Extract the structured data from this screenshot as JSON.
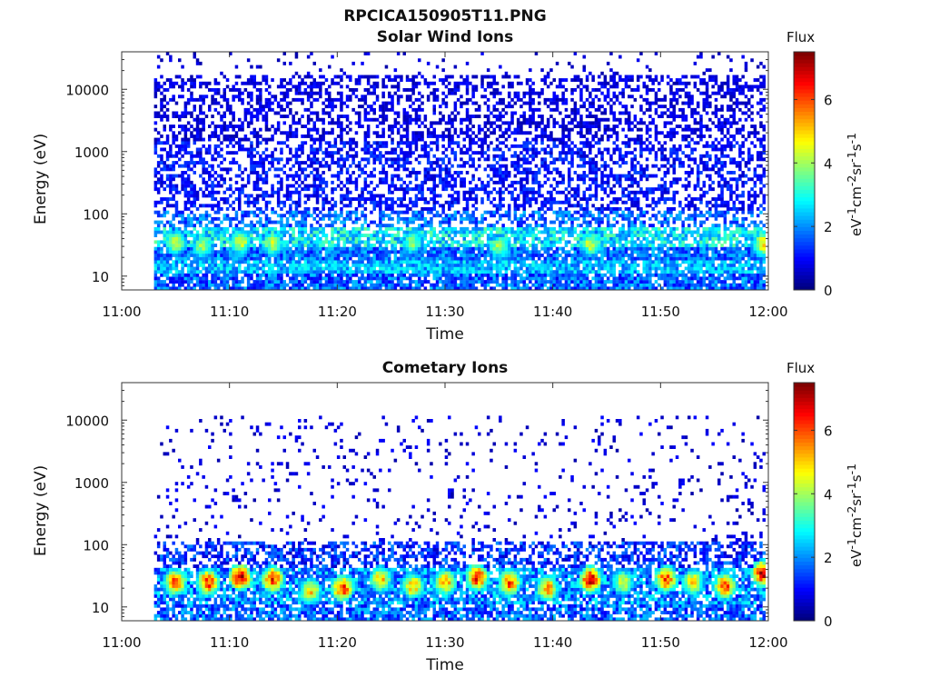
{
  "title": "RPCICA150905T11.PNG",
  "chart_data": [
    {
      "type": "heatmap",
      "title": "Solar Wind Ions",
      "xlabel": "Time",
      "ylabel": "Energy (eV)",
      "x_ticks": [
        "11:00",
        "11:10",
        "11:20",
        "11:30",
        "11:40",
        "11:50",
        "12:00"
      ],
      "xlim_minutes": [
        0,
        60
      ],
      "y_scale": "log",
      "y_ticks": [
        "10",
        "100",
        "1000",
        "10000"
      ],
      "ylim": [
        6,
        40000
      ],
      "data_start_minute": 3,
      "colorbar": {
        "label": "Flux",
        "unit": "eV-1cm-2sr-1s-1",
        "ticks": [
          "0",
          "2",
          "4",
          "6"
        ],
        "range": [
          0,
          7.5
        ],
        "colormap": "jet"
      },
      "bands": [
        {
          "emin": 6,
          "emax": 11,
          "density": 0.85,
          "flux": [
            0.8,
            2.5
          ]
        },
        {
          "emin": 11,
          "emax": 18,
          "density": 0.9,
          "flux": [
            1.5,
            3.0
          ]
        },
        {
          "emin": 18,
          "emax": 28,
          "density": 0.9,
          "flux": [
            1.0,
            2.5
          ]
        },
        {
          "emin": 28,
          "emax": 60,
          "density": 0.75,
          "flux": [
            1.8,
            3.6
          ]
        },
        {
          "emin": 60,
          "emax": 120,
          "density": 0.55,
          "flux": [
            1.0,
            2.4
          ]
        },
        {
          "emin": 120,
          "emax": 1500,
          "density": 0.5,
          "flux": [
            0.5,
            1.5
          ]
        },
        {
          "emin": 1500,
          "emax": 16000,
          "density": 0.45,
          "flux": [
            0.3,
            1.1
          ]
        },
        {
          "emin": 16000,
          "emax": 40000,
          "density": 0.06,
          "flux": [
            0.3,
            0.9
          ]
        }
      ],
      "hotspots": [
        {
          "minute": 5,
          "energy": 35,
          "flux": 4.3
        },
        {
          "minute": 7.5,
          "energy": 30,
          "flux": 4.0
        },
        {
          "minute": 11,
          "energy": 35,
          "flux": 4.5
        },
        {
          "minute": 14,
          "energy": 33,
          "flux": 4.2
        },
        {
          "minute": 27,
          "energy": 35,
          "flux": 3.8
        },
        {
          "minute": 35,
          "energy": 30,
          "flux": 4.0
        },
        {
          "minute": 43.5,
          "energy": 33,
          "flux": 4.3
        },
        {
          "minute": 59.5,
          "energy": 33,
          "flux": 4.8
        }
      ]
    },
    {
      "type": "heatmap",
      "title": "Cometary Ions",
      "xlabel": "Time",
      "ylabel": "Energy (eV)",
      "x_ticks": [
        "11:00",
        "11:10",
        "11:20",
        "11:30",
        "11:40",
        "11:50",
        "12:00"
      ],
      "xlim_minutes": [
        0,
        60
      ],
      "y_scale": "log",
      "y_ticks": [
        "10",
        "100",
        "1000",
        "10000"
      ],
      "ylim": [
        6,
        40000
      ],
      "data_start_minute": 3,
      "colorbar": {
        "label": "Flux",
        "unit": "eV-1cm-2sr-1s-1",
        "ticks": [
          "0",
          "2",
          "4",
          "6"
        ],
        "range": [
          0,
          7.5
        ],
        "colormap": "jet"
      },
      "bands": [
        {
          "emin": 6,
          "emax": 11,
          "density": 0.75,
          "flux": [
            0.8,
            2.5
          ]
        },
        {
          "emin": 11,
          "emax": 45,
          "density": 0.8,
          "flux": [
            1.0,
            3.0
          ]
        },
        {
          "emin": 45,
          "emax": 120,
          "density": 0.55,
          "flux": [
            0.5,
            2.0
          ]
        },
        {
          "emin": 120,
          "emax": 12000,
          "density": 0.07,
          "flux": [
            0.3,
            1.0
          ]
        }
      ],
      "hotspots": [
        {
          "minute": 5,
          "energy": 25,
          "flux": 6.0
        },
        {
          "minute": 8,
          "energy": 25,
          "flux": 6.3
        },
        {
          "minute": 11,
          "energy": 30,
          "flux": 7.0
        },
        {
          "minute": 14,
          "energy": 28,
          "flux": 6.3
        },
        {
          "minute": 17.5,
          "energy": 18,
          "flux": 5.0
        },
        {
          "minute": 20.5,
          "energy": 20,
          "flux": 6.2
        },
        {
          "minute": 24,
          "energy": 28,
          "flux": 5.2
        },
        {
          "minute": 27,
          "energy": 22,
          "flux": 5.2
        },
        {
          "minute": 30,
          "energy": 25,
          "flux": 5.5
        },
        {
          "minute": 33,
          "energy": 30,
          "flux": 6.5
        },
        {
          "minute": 36,
          "energy": 25,
          "flux": 6.0
        },
        {
          "minute": 39.5,
          "energy": 20,
          "flux": 5.5
        },
        {
          "minute": 43.5,
          "energy": 28,
          "flux": 6.8
        },
        {
          "minute": 46.5,
          "energy": 25,
          "flux": 4.5
        },
        {
          "minute": 50.5,
          "energy": 28,
          "flux": 6.2
        },
        {
          "minute": 53,
          "energy": 25,
          "flux": 5.0
        },
        {
          "minute": 56,
          "energy": 22,
          "flux": 6.0
        },
        {
          "minute": 59.5,
          "energy": 35,
          "flux": 7.0
        }
      ]
    }
  ]
}
